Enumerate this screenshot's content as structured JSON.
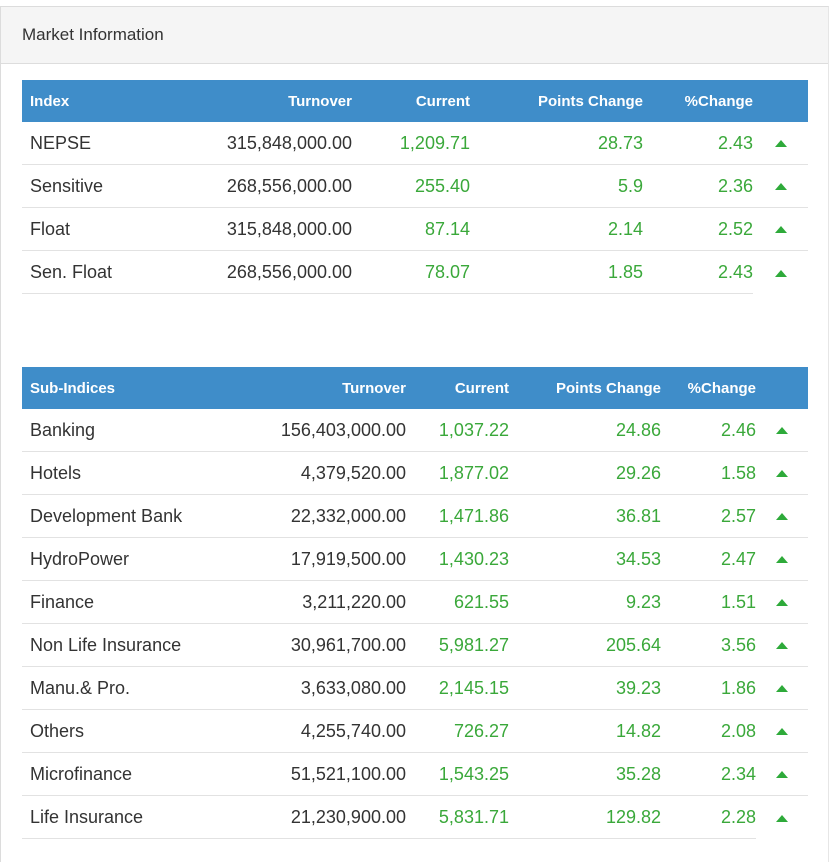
{
  "panel": {
    "title": "Market Information"
  },
  "index_table": {
    "headers": [
      "Index",
      "Turnover",
      "Current",
      "Points Change",
      "%Change"
    ],
    "rows": [
      {
        "name": "NEPSE",
        "turnover": "315,848,000.00",
        "current": "1,209.71",
        "points_change": "28.73",
        "pct_change": "2.43",
        "direction": "up"
      },
      {
        "name": "Sensitive",
        "turnover": "268,556,000.00",
        "current": "255.40",
        "points_change": "5.9",
        "pct_change": "2.36",
        "direction": "up"
      },
      {
        "name": "Float",
        "turnover": "315,848,000.00",
        "current": "87.14",
        "points_change": "2.14",
        "pct_change": "2.52",
        "direction": "up"
      },
      {
        "name": "Sen. Float",
        "turnover": "268,556,000.00",
        "current": "78.07",
        "points_change": "1.85",
        "pct_change": "2.43",
        "direction": "up"
      }
    ]
  },
  "sub_table": {
    "headers": [
      "Sub-Indices",
      "Turnover",
      "Current",
      "Points Change",
      "%Change"
    ],
    "rows": [
      {
        "name": "Banking",
        "turnover": "156,403,000.00",
        "current": "1,037.22",
        "points_change": "24.86",
        "pct_change": "2.46",
        "direction": "up"
      },
      {
        "name": "Hotels",
        "turnover": "4,379,520.00",
        "current": "1,877.02",
        "points_change": "29.26",
        "pct_change": "1.58",
        "direction": "up"
      },
      {
        "name": "Development Bank",
        "turnover": "22,332,000.00",
        "current": "1,471.86",
        "points_change": "36.81",
        "pct_change": "2.57",
        "direction": "up"
      },
      {
        "name": "HydroPower",
        "turnover": "17,919,500.00",
        "current": "1,430.23",
        "points_change": "34.53",
        "pct_change": "2.47",
        "direction": "up"
      },
      {
        "name": "Finance",
        "turnover": "3,211,220.00",
        "current": "621.55",
        "points_change": "9.23",
        "pct_change": "1.51",
        "direction": "up"
      },
      {
        "name": "Non Life Insurance",
        "turnover": "30,961,700.00",
        "current": "5,981.27",
        "points_change": "205.64",
        "pct_change": "3.56",
        "direction": "up"
      },
      {
        "name": "Manu.& Pro.",
        "turnover": "3,633,080.00",
        "current": "2,145.15",
        "points_change": "39.23",
        "pct_change": "1.86",
        "direction": "up"
      },
      {
        "name": "Others",
        "turnover": "4,255,740.00",
        "current": "726.27",
        "points_change": "14.82",
        "pct_change": "2.08",
        "direction": "up"
      },
      {
        "name": "Microfinance",
        "turnover": "51,521,100.00",
        "current": "1,543.25",
        "points_change": "35.28",
        "pct_change": "2.34",
        "direction": "up"
      },
      {
        "name": "Life Insurance",
        "turnover": "21,230,900.00",
        "current": "5,831.71",
        "points_change": "129.82",
        "pct_change": "2.28",
        "direction": "up"
      }
    ]
  },
  "colors": {
    "header_bg": "#3f8dc9",
    "positive": "#3aa83a",
    "up_arrow": "#2eaa3a"
  },
  "icons": {
    "up": "triangle-up-icon"
  }
}
